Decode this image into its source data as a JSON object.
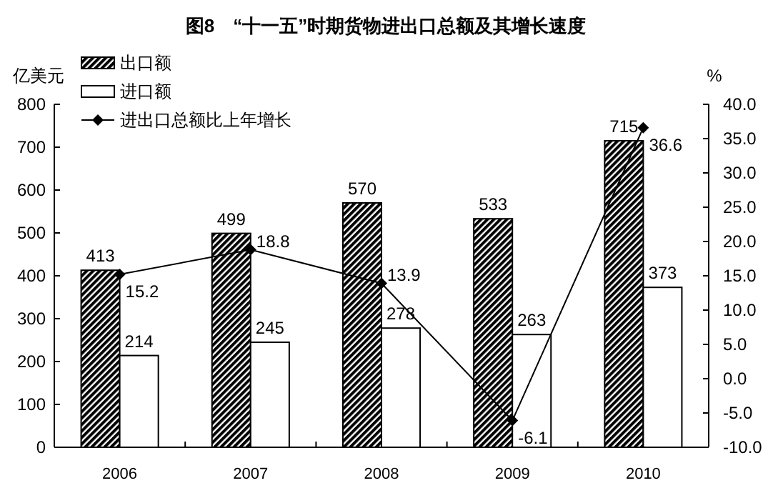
{
  "chart_data": {
    "type": "bar",
    "title": "图8　“十一五”时期货物进出口总额及其增长速度",
    "ylabel": "亿美元",
    "y2label": "%",
    "categories": [
      "2006",
      "2007",
      "2008",
      "2009",
      "2010"
    ],
    "series": [
      {
        "name": "出口额",
        "color": "#000000",
        "values": [
          413,
          499,
          570,
          533,
          715
        ]
      },
      {
        "name": "进口额",
        "color": "#ffffff",
        "values": [
          214,
          245,
          278,
          263,
          373
        ]
      },
      {
        "name": "进出口总额比上年增长",
        "type": "line",
        "axis": "y2",
        "color": "#000000",
        "values": [
          15.2,
          18.8,
          13.9,
          -6.1,
          36.6
        ]
      }
    ],
    "ylim": [
      0,
      800
    ],
    "yticks": [
      0,
      100,
      200,
      300,
      400,
      500,
      600,
      700,
      800
    ],
    "y2lim": [
      -10,
      40
    ],
    "y2ticks": [
      {
        "value": -10,
        "label": "-10.0"
      },
      {
        "value": -5,
        "label": "-5.0"
      },
      {
        "value": 0,
        "label": "0.0"
      },
      {
        "value": 5,
        "label": "5.0"
      },
      {
        "value": 10,
        "label": "10.0"
      },
      {
        "value": 15,
        "label": "15.0"
      },
      {
        "value": 20,
        "label": "20.0"
      },
      {
        "value": 25,
        "label": "25.0"
      },
      {
        "value": 30,
        "label": "30.0"
      },
      {
        "value": 35,
        "label": "35.0"
      },
      {
        "value": 40,
        "label": "40.0"
      }
    ],
    "data_labels": true,
    "legend": "top left",
    "marker": "diamond",
    "line_style": "solid"
  }
}
